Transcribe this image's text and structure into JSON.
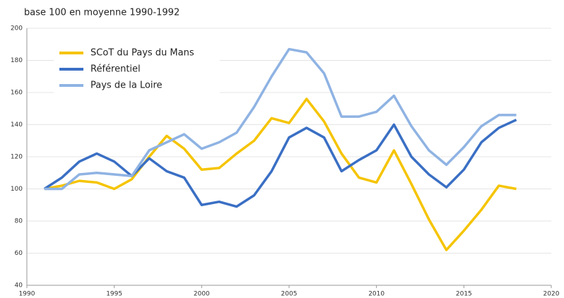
{
  "chart_data": {
    "type": "line",
    "title": "base 100 en moyenne 1990-1992",
    "x": [
      1991,
      1992,
      1993,
      1994,
      1995,
      1996,
      1997,
      1998,
      1999,
      2000,
      2001,
      2002,
      2003,
      2004,
      2005,
      2006,
      2007,
      2008,
      2009,
      2010,
      2011,
      2012,
      2013,
      2014,
      2015,
      2016,
      2017,
      2018
    ],
    "series": [
      {
        "name": "SCoT du Pays du Mans",
        "color": "#f5c400",
        "values": [
          100,
          102,
          105,
          104,
          100,
          106,
          120,
          133,
          125,
          112,
          113,
          122,
          130,
          144,
          141,
          156,
          142,
          122,
          107,
          104,
          124,
          103,
          81,
          62,
          74,
          87,
          102,
          100
        ]
      },
      {
        "name": "Référentiel",
        "color": "#3a6fc4",
        "values": [
          100,
          107,
          117,
          122,
          117,
          108,
          119,
          111,
          107,
          90,
          92,
          89,
          96,
          111,
          132,
          138,
          132,
          111,
          118,
          124,
          140,
          120,
          109,
          101,
          112,
          129,
          138,
          143
        ]
      },
      {
        "name": "Pays de la Loire",
        "color": "#8fb3e3",
        "values": [
          100,
          100,
          109,
          110,
          109,
          108,
          124,
          129,
          134,
          125,
          129,
          135,
          151,
          170,
          187,
          185,
          172,
          145,
          145,
          148,
          158,
          139,
          124,
          115,
          126,
          139,
          146,
          146
        ]
      }
    ],
    "xlim": [
      1990,
      2020
    ],
    "xticks": [
      1990,
      1995,
      2000,
      2005,
      2010,
      2015,
      2020
    ],
    "ylim": [
      40,
      200
    ],
    "yticks": [
      40,
      60,
      80,
      100,
      120,
      140,
      160,
      180,
      200
    ],
    "grid": true,
    "legend": "top-left"
  }
}
